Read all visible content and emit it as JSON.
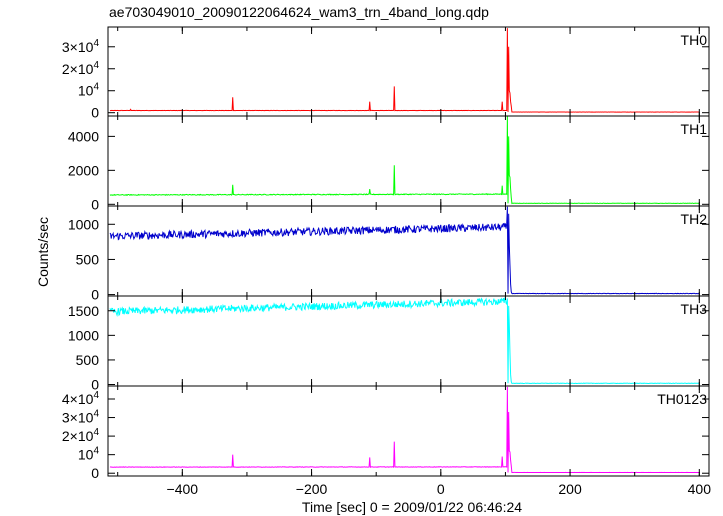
{
  "chart_data": {
    "type": "line",
    "title": "ae703049010_20090122064624_wam3_trn_4band_long.qdp",
    "xlabel": "Time [sec] 0 = 2009/01/22 06:46:24",
    "ylabel": "Counts/sec",
    "xlim": [
      -515,
      415
    ],
    "xticks": [
      -400,
      -200,
      0,
      200,
      400
    ],
    "xtick_labels": [
      "−400",
      "−200",
      "0",
      "200",
      "400"
    ],
    "trigger_time": 104,
    "panels": [
      {
        "name": "TH0",
        "color": "#ff0000",
        "ylim": [
          -1500,
          39000
        ],
        "yticks": [
          0,
          10000,
          20000,
          30000
        ],
        "ytick_labels": [
          {
            "m": "0",
            "e": ""
          },
          {
            "m": "10",
            "e": "4"
          },
          {
            "m": "2×10",
            "e": "4"
          },
          {
            "m": "3×10",
            "e": "4"
          }
        ],
        "pre_start": 1000,
        "pre_end": 1000,
        "noise": 60,
        "spikes": [
          [
            -480,
            1500
          ],
          [
            -322,
            7000
          ],
          [
            -110,
            5000
          ],
          [
            -72,
            12000
          ],
          [
            95,
            5000
          ]
        ],
        "peak": 38500,
        "post": 300,
        "post_noise": 25,
        "tail": [
          [
            105,
            30000
          ],
          [
            106,
            10000
          ],
          [
            107,
            9000
          ],
          [
            108,
            5000
          ],
          [
            109,
            3000
          ]
        ]
      },
      {
        "name": "TH1",
        "color": "#00ff00",
        "ylim": [
          -100,
          5200
        ],
        "yticks": [
          0,
          2000,
          4000
        ],
        "ytick_labels": [
          {
            "m": "0",
            "e": ""
          },
          {
            "m": "2000",
            "e": ""
          },
          {
            "m": "4000",
            "e": ""
          }
        ],
        "pre_start": 550,
        "pre_end": 600,
        "noise": 25,
        "spikes": [
          [
            -322,
            1150
          ],
          [
            -110,
            900
          ],
          [
            -72,
            2300
          ],
          [
            95,
            1100
          ]
        ],
        "peak": 5200,
        "post": 60,
        "post_noise": 10,
        "tail": [
          [
            105,
            4000
          ],
          [
            106,
            1700
          ],
          [
            107,
            1600
          ],
          [
            108,
            900
          ],
          [
            109,
            400
          ]
        ]
      },
      {
        "name": "TH2",
        "color": "#0000cc",
        "ylim": [
          -20,
          1260
        ],
        "yticks": [
          0,
          500,
          1000
        ],
        "ytick_labels": [
          {
            "m": "0",
            "e": ""
          },
          {
            "m": "500",
            "e": ""
          },
          {
            "m": "1000",
            "e": ""
          }
        ],
        "pre_start": 830,
        "pre_end": 960,
        "noise": 55,
        "spikes": [],
        "peak": 1250,
        "post": 15,
        "post_noise": 3,
        "tail": [
          [
            105,
            1150
          ],
          [
            106,
            700
          ],
          [
            107,
            420
          ],
          [
            108,
            150
          ],
          [
            109,
            40
          ]
        ]
      },
      {
        "name": "TH3",
        "color": "#00ffff",
        "ylim": [
          -30,
          1800
        ],
        "yticks": [
          0,
          500,
          1000,
          1500
        ],
        "ytick_labels": [
          {
            "m": "0",
            "e": ""
          },
          {
            "m": "500",
            "e": ""
          },
          {
            "m": "1000",
            "e": ""
          },
          {
            "m": "1500",
            "e": ""
          }
        ],
        "pre_start": 1480,
        "pre_end": 1690,
        "noise": 75,
        "spikes": [],
        "peak": 1750,
        "post": 25,
        "post_noise": 4,
        "tail": [
          [
            105,
            1600
          ],
          [
            106,
            1200
          ],
          [
            107,
            650
          ],
          [
            108,
            200
          ],
          [
            109,
            60
          ]
        ]
      },
      {
        "name": "TH0123",
        "color": "#ff00ff",
        "ylim": [
          -1500,
          47000
        ],
        "yticks": [
          0,
          10000,
          20000,
          30000,
          40000
        ],
        "ytick_labels": [
          {
            "m": "0",
            "e": ""
          },
          {
            "m": "10",
            "e": "4"
          },
          {
            "m": "2×10",
            "e": "4"
          },
          {
            "m": "3×10",
            "e": "4"
          },
          {
            "m": "4×10",
            "e": "4"
          }
        ],
        "pre_start": 3300,
        "pre_end": 3400,
        "noise": 120,
        "spikes": [
          [
            -322,
            10000
          ],
          [
            -110,
            8500
          ],
          [
            -72,
            17000
          ],
          [
            95,
            9000
          ]
        ],
        "peak": 46500,
        "post": 400,
        "post_noise": 30,
        "tail": [
          [
            105,
            33000
          ],
          [
            106,
            12000
          ],
          [
            107,
            11500
          ],
          [
            108,
            7000
          ],
          [
            109,
            4000
          ]
        ]
      }
    ]
  }
}
